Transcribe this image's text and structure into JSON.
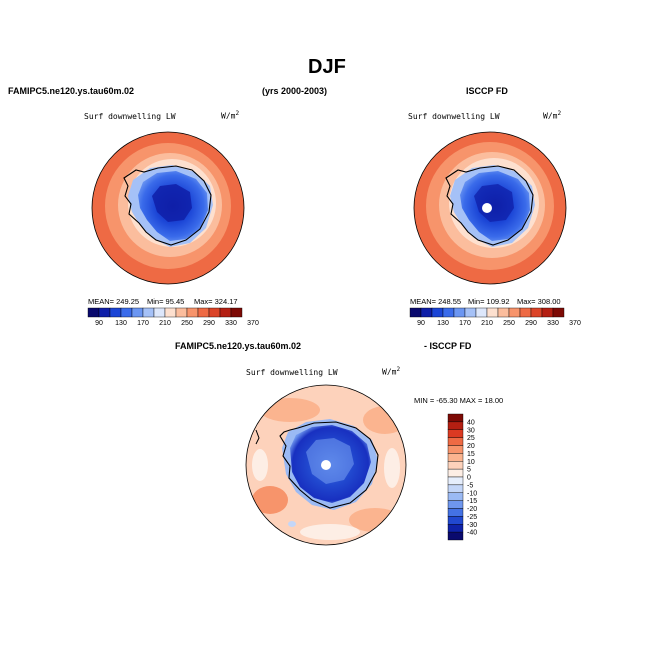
{
  "page": {
    "title": "DJF",
    "model_label": "FAMIPC5.ne120.ys.tau60m.02",
    "years_label": "(yrs 2000-2003)",
    "obs_label": "ISCCP FD",
    "diff_model_label": "FAMIPC5.ne120.ys.tau60m.02",
    "diff_obs_label": "- ISCCP FD"
  },
  "colors": {
    "coast": "#000000",
    "pole_hole": "#ffffff"
  },
  "chart_data": [
    {
      "type": "heatmap",
      "projection": "south-polar-stereographic",
      "variable": "Surf downwelling LW",
      "units_base": "W/m",
      "units_exp": "2",
      "stats": {
        "mean": "MEAN= 249.25",
        "min": "Min=  95.45",
        "max": "Max= 324.17"
      },
      "colorbar": {
        "orientation": "horizontal",
        "levels": [
          "90",
          "130",
          "170",
          "210",
          "250",
          "290",
          "330",
          "370"
        ],
        "colors": [
          "#0a0a6e",
          "#0f1fa8",
          "#1b45d6",
          "#3a6bea",
          "#6b96f2",
          "#a5c1f7",
          "#dde7fb",
          "#fde0cf",
          "#fbbd9d",
          "#f7946b",
          "#ee6a44",
          "#db4428",
          "#b41f12",
          "#7d0a05"
        ]
      }
    },
    {
      "type": "heatmap",
      "projection": "south-polar-stereographic",
      "variable": "Surf downwelling LW",
      "units_base": "W/m",
      "units_exp": "2",
      "stats": {
        "mean": "MEAN= 248.55",
        "min": "Min= 109.92",
        "max": "Max= 308.00"
      },
      "colorbar": {
        "orientation": "horizontal",
        "levels": [
          "90",
          "130",
          "170",
          "210",
          "250",
          "290",
          "330",
          "370"
        ],
        "colors": [
          "#0a0a6e",
          "#0f1fa8",
          "#1b45d6",
          "#3a6bea",
          "#6b96f2",
          "#a5c1f7",
          "#dde7fb",
          "#fde0cf",
          "#fbbd9d",
          "#f7946b",
          "#ee6a44",
          "#db4428",
          "#b41f12",
          "#7d0a05"
        ]
      }
    },
    {
      "type": "heatmap",
      "projection": "south-polar-stereographic",
      "variable": "Surf downwelling LW",
      "units_base": "W/m",
      "units_exp": "2",
      "stats": {
        "minmax": "MIN = -65.30  MAX =  18.00"
      },
      "colorbar": {
        "orientation": "vertical",
        "levels": [
          "40",
          "30",
          "25",
          "20",
          "15",
          "10",
          "5",
          "0",
          "-5",
          "-10",
          "-15",
          "-20",
          "-25",
          "-30",
          "-40"
        ],
        "colors": [
          "#7d0a05",
          "#b41f12",
          "#db3a22",
          "#ee6a44",
          "#f7946b",
          "#fbb48f",
          "#fdd2bb",
          "#fdeee5",
          "#e6eefc",
          "#c4d6f8",
          "#9bbaf4",
          "#6f97ee",
          "#4472e4",
          "#2148cf",
          "#0f22a8",
          "#0a0a6e"
        ]
      }
    }
  ]
}
